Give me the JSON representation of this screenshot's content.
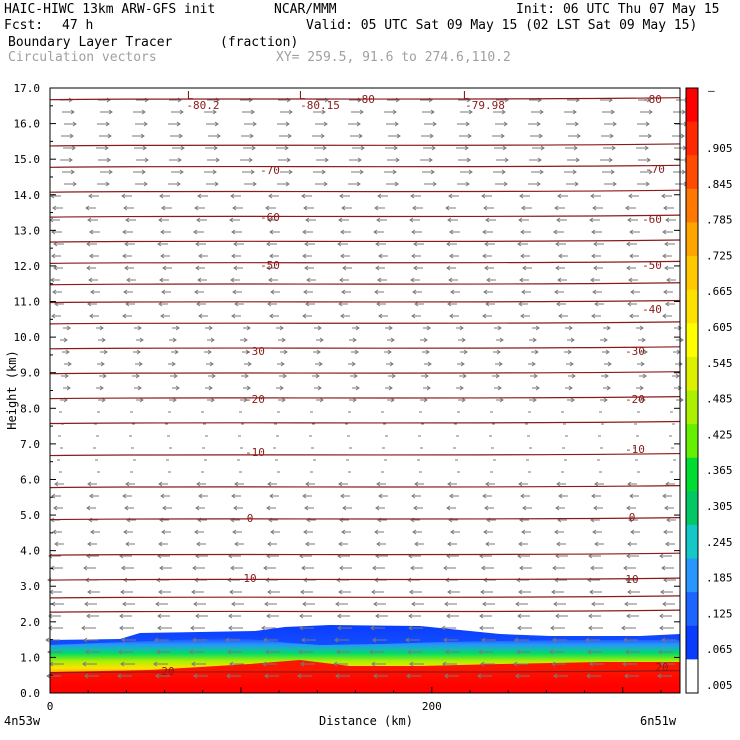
{
  "header": {
    "model": "HAIC-HIWC 13km ARW-GFS init",
    "org": "NCAR/MMM",
    "init": "Init: 06 UTC Thu 07 May 15",
    "fcst_label": "Fcst:",
    "fcst_value": "47 h",
    "valid": "Valid: 05 UTC Sat 09 May 15 (02 LST Sat 09 May 15)",
    "field": "Boundary Layer Tracer",
    "field_units": "(fraction)",
    "overlay": "Circulation vectors",
    "xy": "XY= 259.5, 91.6 to 274.6,110.2"
  },
  "chart_data": {
    "type": "heatmap",
    "title": "Boundary Layer Tracer",
    "xlabel": "Distance (km)",
    "ylabel": "Height (km)",
    "xlim": [
      0,
      330
    ],
    "ylim": [
      0,
      17
    ],
    "x_ticks": [
      "0",
      "200"
    ],
    "x_end_labels": {
      "left": "4n53w",
      "right": "6n51w"
    },
    "y_ticks": [
      "0.0",
      "1.0",
      "2.0",
      "3.0",
      "4.0",
      "5.0",
      "6.0",
      "7.0",
      "8.0",
      "9.0",
      "10.0",
      "11.0",
      "12.0",
      "13.0",
      "14.0",
      "15.0",
      "16.0",
      "17.0"
    ],
    "colorbar": {
      "labels": [
        ".005",
        ".065",
        ".125",
        ".185",
        ".245",
        ".305",
        ".365",
        ".425",
        ".485",
        ".545",
        ".605",
        ".665",
        ".725",
        ".785",
        ".845",
        ".905"
      ],
      "top_label": "–",
      "colors": [
        "#ffffff",
        "#0a3cff",
        "#1e64ff",
        "#2896ff",
        "#14c8c8",
        "#00c864",
        "#00dc32",
        "#64f000",
        "#aaf000",
        "#dcf000",
        "#ffff00",
        "#ffe100",
        "#ffc800",
        "#ffa500",
        "#ff7800",
        "#ff4b00",
        "#ff2800",
        "#ff0000"
      ]
    },
    "contour_labels": [
      "-80.2",
      "-80.15",
      "-80",
      "-79.98",
      "-80",
      "-70",
      "-70",
      "-60",
      "-60",
      "-50",
      "-50",
      "-40",
      "-30",
      "-30",
      "-20",
      "-20",
      "-10",
      "-10",
      "0",
      "0",
      "10",
      "10",
      "20",
      "20"
    ],
    "low_markers": [
      "L",
      "L",
      "L"
    ]
  }
}
